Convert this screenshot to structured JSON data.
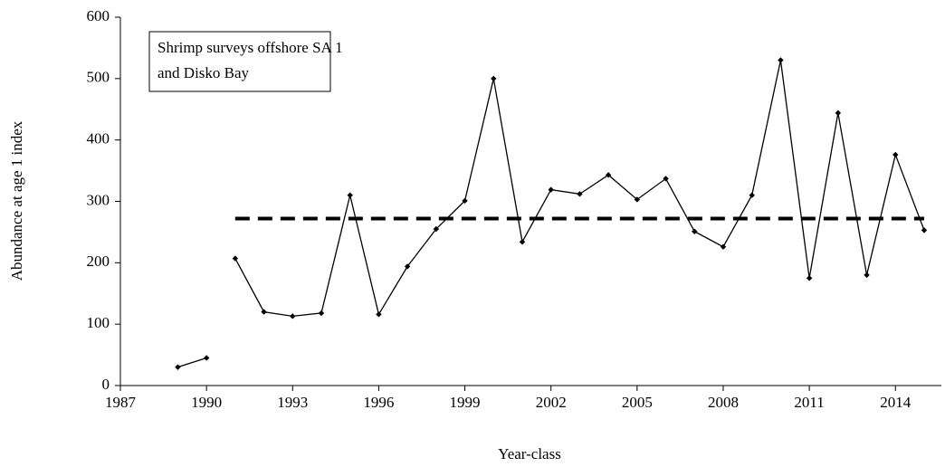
{
  "chart_data": {
    "type": "line",
    "x_label": "Year-class",
    "y_label": "Abundance at age 1 index",
    "annotation": [
      "Shrimp surveys offshore SA 1",
      "and Disko Bay"
    ],
    "xlim": [
      1987,
      2015.6
    ],
    "xticks": [
      1987,
      1990,
      1993,
      1996,
      1999,
      2002,
      2005,
      2008,
      2011,
      2014
    ],
    "ylim": [
      0,
      600
    ],
    "yticks": [
      0,
      100,
      200,
      300,
      400,
      500,
      600
    ],
    "grid": false,
    "series": [
      {
        "color": "#000000",
        "dashed": false,
        "marker": "diamond",
        "x": [
          1989,
          1990
        ],
        "values": [
          30,
          45
        ]
      },
      {
        "color": "#000000",
        "dashed": false,
        "marker": "diamond",
        "x": [
          1991,
          1992,
          1993,
          1994,
          1995,
          1996,
          1997,
          1998,
          1999,
          2000,
          2001,
          2002,
          2003,
          2004,
          2005,
          2006,
          2007,
          2008,
          2009,
          2010,
          2011,
          2012,
          2013,
          2014,
          2015
        ],
        "values": [
          207,
          120,
          113,
          118,
          310,
          116,
          194,
          255,
          301,
          500,
          234,
          319,
          312,
          343,
          303,
          337,
          251,
          226,
          310,
          530,
          175,
          444,
          180,
          376,
          253
        ]
      },
      {
        "color": "#000000",
        "dashed": true,
        "marker": null,
        "x": [
          1991,
          2015
        ],
        "values": [
          272,
          272
        ]
      }
    ]
  }
}
